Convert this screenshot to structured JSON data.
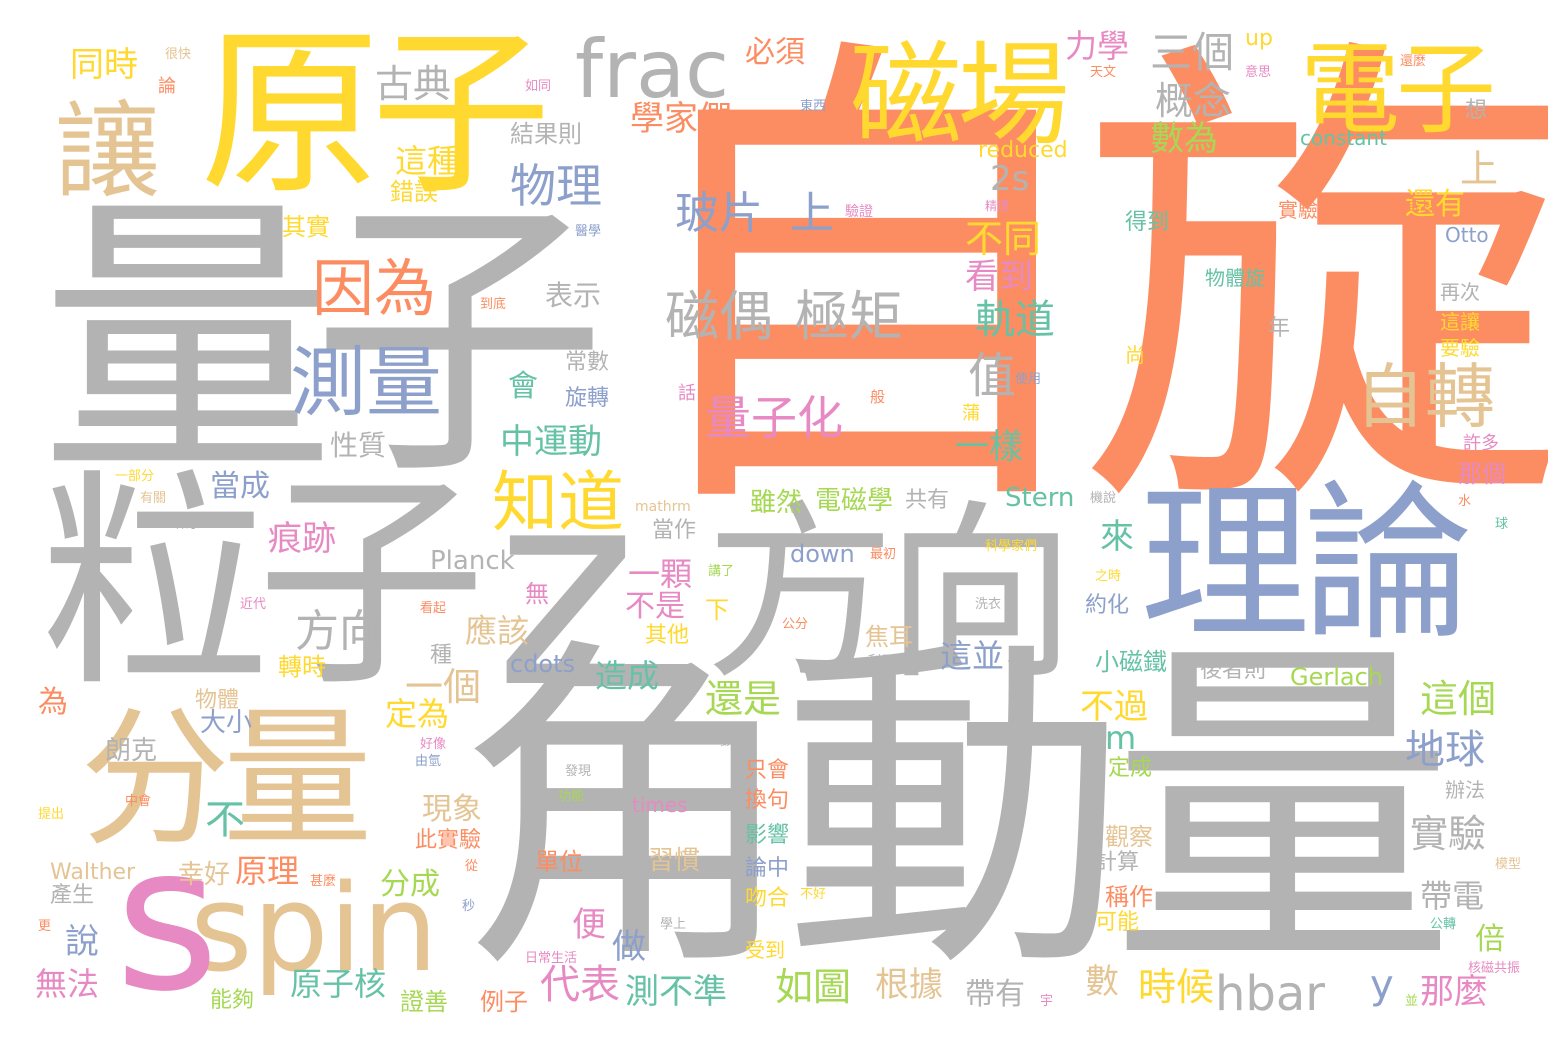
{
  "palette": {
    "orange": "#fc8d62",
    "gray": "#b3b3b3",
    "gold": "#ffd92f",
    "tan": "#e5c494",
    "blue": "#8da0cb",
    "pink": "#e78ac3",
    "green": "#a6d854",
    "teal": "#66c2a5"
  },
  "words": [
    {
      "text": "自旋",
      "color": "orange"
    },
    {
      "text": "角動量",
      "color": "gray"
    },
    {
      "text": "量子",
      "color": "gray"
    },
    {
      "text": "粒子",
      "color": "gray"
    },
    {
      "text": "z",
      "color": "gray"
    },
    {
      "text": "方向",
      "color": "gray"
    },
    {
      "text": "理論",
      "color": "blue"
    },
    {
      "text": "原子",
      "color": "gold"
    },
    {
      "text": "分量",
      "color": "tan"
    },
    {
      "text": "spin",
      "color": "tan"
    },
    {
      "text": "s",
      "color": "pink"
    },
    {
      "text": "磁場",
      "color": "gold"
    },
    {
      "text": "電子",
      "color": "gold"
    },
    {
      "text": "frac",
      "color": "gray"
    },
    {
      "text": "讓",
      "color": "tan"
    },
    {
      "text": "測量",
      "color": "blue"
    },
    {
      "text": "因為",
      "color": "orange"
    },
    {
      "text": "知道",
      "color": "gold"
    },
    {
      "text": "自轉",
      "color": "tan"
    },
    {
      "text": "玻片",
      "color": "blue"
    },
    {
      "text": "上",
      "color": "blue"
    },
    {
      "text": "磁偶",
      "color": "gray"
    },
    {
      "text": "極矩",
      "color": "gray"
    },
    {
      "text": "量子化",
      "color": "pink"
    },
    {
      "text": "物理",
      "color": "blue"
    },
    {
      "text": "古典",
      "color": "gray"
    },
    {
      "text": "三個",
      "color": "gray"
    },
    {
      "text": "概念",
      "color": "gray"
    },
    {
      "text": "數為",
      "color": "green"
    },
    {
      "text": "力學",
      "color": "pink"
    },
    {
      "text": "學家們",
      "color": "orange"
    },
    {
      "text": "必須",
      "color": "orange"
    },
    {
      "text": "同時",
      "color": "gold"
    },
    {
      "text": "這種",
      "color": "gold"
    },
    {
      "text": "錯誤",
      "color": "gold"
    },
    {
      "text": "結果則",
      "color": "gray"
    },
    {
      "text": "其實",
      "color": "gold"
    },
    {
      "text": "2s",
      "color": "gray"
    },
    {
      "text": "不同",
      "color": "gold"
    },
    {
      "text": "看到",
      "color": "pink"
    },
    {
      "text": "軌道",
      "color": "teal"
    },
    {
      "text": "值",
      "color": "gray"
    },
    {
      "text": "一樣",
      "color": "teal"
    },
    {
      "text": "表示",
      "color": "gray"
    },
    {
      "text": "性質",
      "color": "gray"
    },
    {
      "text": "中運動",
      "color": "teal"
    },
    {
      "text": "會",
      "color": "teal"
    },
    {
      "text": "常數",
      "color": "gray"
    },
    {
      "text": "旋轉",
      "color": "blue"
    },
    {
      "text": "痕跡",
      "color": "pink"
    },
    {
      "text": "當成",
      "color": "blue"
    },
    {
      "text": "一顆",
      "color": "pink"
    },
    {
      "text": "不是",
      "color": "pink"
    },
    {
      "text": "應該",
      "color": "tan"
    },
    {
      "text": "一個",
      "color": "tan"
    },
    {
      "text": "方向",
      "color": "gray"
    },
    {
      "text": "來",
      "color": "teal"
    },
    {
      "text": "不過",
      "color": "gold"
    },
    {
      "text": "還是",
      "color": "green"
    },
    {
      "text": "這並",
      "color": "blue"
    },
    {
      "text": "地球",
      "color": "blue"
    },
    {
      "text": "這個",
      "color": "green"
    },
    {
      "text": "實驗",
      "color": "gray"
    },
    {
      "text": "帶電",
      "color": "gray"
    },
    {
      "text": "現象",
      "color": "tan"
    },
    {
      "text": "造成",
      "color": "teal"
    },
    {
      "text": "定為",
      "color": "gold"
    },
    {
      "text": "大小",
      "color": "blue"
    },
    {
      "text": "朗克",
      "color": "gray"
    },
    {
      "text": "原理",
      "color": "orange"
    },
    {
      "text": "幸好",
      "color": "tan"
    },
    {
      "text": "分成",
      "color": "green"
    },
    {
      "text": "說",
      "color": "blue"
    },
    {
      "text": "無法",
      "color": "pink"
    },
    {
      "text": "原子核",
      "color": "teal"
    },
    {
      "text": "代表",
      "color": "pink"
    },
    {
      "text": "便",
      "color": "pink"
    },
    {
      "text": "做",
      "color": "blue"
    },
    {
      "text": "測不準",
      "color": "teal"
    },
    {
      "text": "如圖",
      "color": "green"
    },
    {
      "text": "根據",
      "color": "tan"
    },
    {
      "text": "帶有",
      "color": "gray"
    },
    {
      "text": "數",
      "color": "tan"
    },
    {
      "text": "時候",
      "color": "gold"
    },
    {
      "text": "hbar",
      "color": "gray"
    },
    {
      "text": "y",
      "color": "blue"
    },
    {
      "text": "那麼",
      "color": "pink"
    },
    {
      "text": "倍",
      "color": "green"
    },
    {
      "text": "不",
      "color": "teal"
    },
    {
      "text": "m",
      "color": "teal"
    },
    {
      "text": "Stern",
      "color": "teal"
    },
    {
      "text": "電磁學",
      "color": "green"
    },
    {
      "text": "共有",
      "color": "gray"
    },
    {
      "text": "雖然",
      "color": "green"
    },
    {
      "text": "Planck",
      "color": "gray"
    },
    {
      "text": "down",
      "color": "blue"
    },
    {
      "text": "cdots",
      "color": "blue"
    },
    {
      "text": "Gerlach",
      "color": "green"
    },
    {
      "text": "後者則",
      "color": "gray"
    },
    {
      "text": "小磁鐵",
      "color": "teal"
    },
    {
      "text": "Walther",
      "color": "tan"
    },
    {
      "text": "reduced",
      "color": "gold"
    },
    {
      "text": "constant",
      "color": "teal"
    },
    {
      "text": "Otto",
      "color": "blue"
    },
    {
      "text": "還有",
      "color": "gold"
    },
    {
      "text": "上",
      "color": "tan"
    },
    {
      "text": "得到",
      "color": "teal"
    },
    {
      "text": "實驗來",
      "color": "orange"
    },
    {
      "text": "物體旋",
      "color": "teal"
    },
    {
      "text": "再次",
      "color": "gray"
    },
    {
      "text": "這讓",
      "color": "gold"
    },
    {
      "text": "要驗",
      "color": "gold"
    },
    {
      "text": "許多",
      "color": "pink"
    },
    {
      "text": "那個",
      "color": "pink"
    },
    {
      "text": "辦法",
      "color": "gray"
    },
    {
      "text": "觀察",
      "color": "tan"
    },
    {
      "text": "計算",
      "color": "gray"
    },
    {
      "text": "稱作",
      "color": "orange"
    },
    {
      "text": "可能",
      "color": "gold"
    },
    {
      "text": "定成",
      "color": "green"
    },
    {
      "text": "約化",
      "color": "blue"
    },
    {
      "text": "焦耳",
      "color": "tan"
    },
    {
      "text": "times",
      "color": "pink"
    },
    {
      "text": "換句",
      "color": "orange"
    },
    {
      "text": "只會",
      "color": "orange"
    },
    {
      "text": "影響",
      "color": "teal"
    },
    {
      "text": "論中",
      "color": "blue"
    },
    {
      "text": "吻合",
      "color": "gold"
    },
    {
      "text": "受到",
      "color": "gold"
    },
    {
      "text": "習慣",
      "color": "tan"
    },
    {
      "text": "單位",
      "color": "orange"
    },
    {
      "text": "例子",
      "color": "orange"
    },
    {
      "text": "證善",
      "color": "green"
    },
    {
      "text": "能夠",
      "color": "green"
    },
    {
      "text": "產生",
      "color": "gray"
    },
    {
      "text": "此實驗",
      "color": "orange"
    },
    {
      "text": "轉時",
      "color": "gold"
    },
    {
      "text": "物體",
      "color": "tan"
    },
    {
      "text": "為",
      "color": "orange"
    },
    {
      "text": "種",
      "color": "gray"
    },
    {
      "text": "無",
      "color": "pink"
    },
    {
      "text": "下",
      "color": "gold"
    },
    {
      "text": "其他",
      "color": "gold"
    },
    {
      "text": "當作",
      "color": "gray"
    },
    {
      "text": "up",
      "color": "gold"
    },
    {
      "text": "年",
      "color": "gray"
    },
    {
      "text": "尚",
      "color": "gold"
    },
    {
      "text": "想",
      "color": "gray"
    },
    {
      "text": "很快",
      "color": "tan"
    },
    {
      "text": "論",
      "color": "orange"
    },
    {
      "text": "如同",
      "color": "pink"
    },
    {
      "text": "東西",
      "color": "blue"
    },
    {
      "text": "天文",
      "color": "orange"
    },
    {
      "text": "還麼",
      "color": "orange"
    },
    {
      "text": "意思",
      "color": "pink"
    },
    {
      "text": "驗證",
      "color": "pink"
    },
    {
      "text": "精理",
      "color": "pink"
    },
    {
      "text": "宇宙上",
      "color": "orange"
    },
    {
      "text": "醫學",
      "color": "blue"
    },
    {
      "text": "到底",
      "color": "orange"
    },
    {
      "text": "話",
      "color": "pink"
    },
    {
      "text": "般",
      "color": "orange"
    },
    {
      "text": "使用",
      "color": "blue"
    },
    {
      "text": "蒲",
      "color": "gold"
    },
    {
      "text": "一部分",
      "color": "gold"
    },
    {
      "text": "有關",
      "color": "tan"
    },
    {
      "text": "mathrm",
      "color": "tan"
    },
    {
      "text": "機說",
      "color": "gray"
    },
    {
      "text": "科學家們",
      "color": "gold"
    },
    {
      "text": "之時",
      "color": "gold"
    },
    {
      "text": "似乎",
      "color": "gray"
    },
    {
      "text": "近代",
      "color": "pink"
    },
    {
      "text": "看起",
      "color": "orange"
    },
    {
      "text": "講了",
      "color": "green"
    },
    {
      "text": "最初",
      "color": "orange"
    },
    {
      "text": "洗衣",
      "color": "gray"
    },
    {
      "text": "公分",
      "color": "orange"
    },
    {
      "text": "利用",
      "color": "gray"
    },
    {
      "text": "好像",
      "color": "pink"
    },
    {
      "text": "由氫",
      "color": "blue"
    },
    {
      "text": "發現",
      "color": "gray"
    },
    {
      "text": "數是",
      "color": "gray"
    },
    {
      "text": "提出",
      "color": "gold"
    },
    {
      "text": "中會",
      "color": "orange"
    },
    {
      "text": "功能",
      "color": "green"
    },
    {
      "text": "甚麼",
      "color": "orange"
    },
    {
      "text": "從",
      "color": "orange"
    },
    {
      "text": "秒",
      "color": "blue"
    },
    {
      "text": "水",
      "color": "orange"
    },
    {
      "text": "球",
      "color": "teal"
    },
    {
      "text": "模型",
      "color": "tan"
    },
    {
      "text": "不好",
      "color": "gold"
    },
    {
      "text": "學上",
      "color": "gray"
    },
    {
      "text": "日常生活",
      "color": "pink"
    },
    {
      "text": "公轉",
      "color": "teal"
    },
    {
      "text": "核磁共振",
      "color": "pink"
    },
    {
      "text": "宇",
      "color": "pink"
    },
    {
      "text": "並",
      "color": "green"
    },
    {
      "text": "更",
      "color": "orange"
    }
  ]
}
